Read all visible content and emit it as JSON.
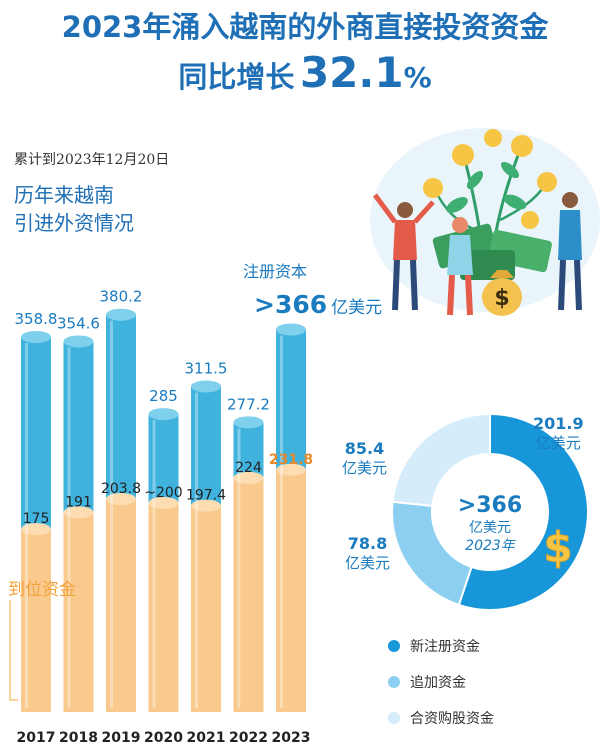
{
  "title_line1": "2023年涌入越南的外商直接投资资金",
  "title_line2_text": "同比增长",
  "title_line2_number": "32.1",
  "title_line2_percent": "%",
  "date_note": "累计到2023年12月20日",
  "subtitle_line1": "历年来越南",
  "subtitle_line2": "引进外资情况",
  "registered_label": "注册资本",
  "registered_total": ">366",
  "registered_unit": "亿美元",
  "paid_label": "到位资金",
  "colors": {
    "title_blue": "#1e6fb5",
    "bar_blue": "#3fb3de",
    "bar_orange": "#f9c98d",
    "highlight_orange": "#e8892c",
    "donut_new": "#1796d9",
    "donut_add": "#8ccff0",
    "donut_mna": "#d5ecfa"
  },
  "chart_data": [
    {
      "type": "bar",
      "categories": [
        "2017",
        "2018",
        "2019",
        "2020",
        "2021",
        "2022",
        "2023"
      ],
      "series": [
        {
          "name": "注册资本",
          "values": [
            358.8,
            354.6,
            380.2,
            285,
            311.5,
            277.2,
            366
          ]
        },
        {
          "name": "到位资金",
          "values": [
            175,
            191,
            203.8,
            200,
            197.4,
            224,
            231.8
          ]
        }
      ],
      "value_labels_registered": [
        "358.8",
        "354.6",
        "380.2",
        "285",
        "311.5",
        "277.2",
        ""
      ],
      "value_labels_paid": [
        "175",
        "191",
        "203.8",
        "~200",
        "197.4",
        "224",
        "231.8"
      ]
    },
    {
      "type": "pie",
      "center_value": ">366",
      "center_unit": "亿美元",
      "center_year": "2023年",
      "slices": [
        {
          "name": "新注册资金",
          "value": 201.9,
          "label": "201.9",
          "unit": "亿美元"
        },
        {
          "name": "追加资金",
          "value": 78.8,
          "label": "78.8",
          "unit": "亿美元"
        },
        {
          "name": "合资购股资金",
          "value": 85.4,
          "label": "85.4",
          "unit": "亿美元"
        }
      ]
    }
  ],
  "legend": [
    "新注册资金",
    "追加资金",
    "合资购股资金"
  ],
  "icons": [
    "dollar-icon",
    "money-bag-icon",
    "people-illustration"
  ]
}
